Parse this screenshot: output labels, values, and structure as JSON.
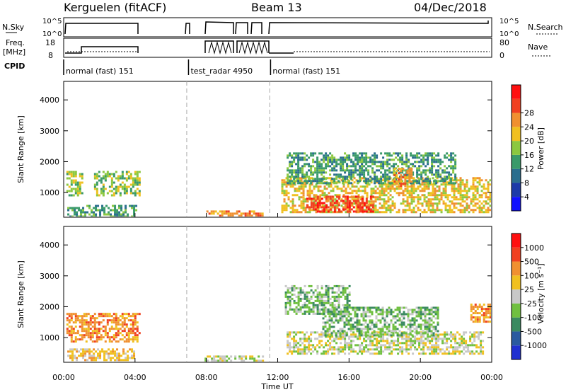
{
  "header": {
    "station": "Kerguelen (fitACF)",
    "beam": "Beam 13",
    "date": "04/Dec/2018"
  },
  "status_panels": {
    "nsky_label": "N.Sky",
    "nsearch_label": "N.Search",
    "freq_label_line1": "Freq.",
    "freq_label_line2": "[MHz]",
    "nave_label": "Nave",
    "cpid_label": "CPID",
    "left_ticks_top": [
      "10^5",
      "10^0"
    ],
    "right_ticks_top": [
      "10^5",
      "10^0"
    ],
    "left_ticks_freq": [
      "18",
      "8"
    ],
    "right_ticks_nave": [
      "80",
      "0"
    ],
    "modes": [
      {
        "label": "normal (fast) 151",
        "start_h": 0.0,
        "end_h": 7.0
      },
      {
        "label": "test_radar 4950",
        "start_h": 7.0,
        "end_h": 11.6
      },
      {
        "label": "normal (fast) 151",
        "start_h": 11.6,
        "end_h": 24.0
      }
    ]
  },
  "chart_data": [
    {
      "type": "heatmap",
      "name": "power",
      "xlabel": "",
      "ylabel": "Slant Range [km]",
      "xlim": [
        0,
        24
      ],
      "ylim": [
        200,
        4600
      ],
      "yticks": [
        1000,
        2000,
        3000,
        4000
      ],
      "colorbar": {
        "label": "Power [dB]",
        "ticks": [
          "4",
          "8",
          "12",
          "16",
          "20",
          "24",
          "28"
        ],
        "colors": [
          "#1010ff",
          "#1c3aa8",
          "#2a6e8e",
          "#3a9a6a",
          "#8cc840",
          "#f0c020",
          "#f09030",
          "#f04020",
          "#ff1010"
        ]
      },
      "regions": [
        {
          "t0": 0.15,
          "t1": 1.0,
          "r0": 900,
          "r1": 1700,
          "level": 4
        },
        {
          "t0": 1.7,
          "t1": 4.2,
          "r0": 900,
          "r1": 1700,
          "level": 4
        },
        {
          "t0": 0.2,
          "t1": 4.1,
          "r0": 250,
          "r1": 600,
          "level": 3
        },
        {
          "t0": 12.2,
          "t1": 23.9,
          "r0": 350,
          "r1": 1500,
          "level": 5
        },
        {
          "t0": 13.6,
          "t1": 17.4,
          "r0": 350,
          "r1": 900,
          "level": 7
        },
        {
          "t0": 12.5,
          "t1": 22.0,
          "r0": 1300,
          "r1": 2300,
          "level": 3
        },
        {
          "t0": 18.5,
          "t1": 19.5,
          "r0": 1200,
          "r1": 1800,
          "level": 6
        },
        {
          "t0": 8.0,
          "t1": 11.2,
          "r0": 250,
          "r1": 420,
          "level": 6
        }
      ]
    },
    {
      "type": "heatmap",
      "name": "velocity",
      "xlabel": "Time UT",
      "ylabel": "Slant Range [km]",
      "xlim": [
        0,
        24
      ],
      "ylim": [
        200,
        4600
      ],
      "yticks": [
        1000,
        2000,
        3000,
        4000
      ],
      "xticks": [
        "00:00",
        "04:00",
        "08:00",
        "12:00",
        "16:00",
        "20:00",
        "00:00"
      ],
      "colorbar": {
        "label": "Velocity [m s⁻¹]",
        "ticks": [
          "1000",
          "500",
          "100",
          "25",
          "-25",
          "-100",
          "-500",
          "-1000"
        ],
        "colors": [
          "#2030d0",
          "#2a5aa0",
          "#3a8a60",
          "#70c040",
          "#c8c8c8",
          "#f0c020",
          "#f09030",
          "#f04020",
          "#ff1010"
        ]
      },
      "regions": [
        {
          "t0": 0.15,
          "t1": 4.2,
          "r0": 900,
          "r1": 1800,
          "level": 6
        },
        {
          "t0": 0.2,
          "t1": 4.0,
          "r0": 250,
          "r1": 650,
          "level": 5
        },
        {
          "t0": 12.5,
          "t1": 23.5,
          "r0": 500,
          "r1": 1200,
          "level": 4
        },
        {
          "t0": 14.5,
          "t1": 21.0,
          "r0": 1100,
          "r1": 2000,
          "level": 3
        },
        {
          "t0": 12.4,
          "t1": 16.0,
          "r0": 1800,
          "r1": 2700,
          "level": 3
        },
        {
          "t0": 22.8,
          "t1": 23.95,
          "r0": 1500,
          "r1": 2100,
          "level": 6
        },
        {
          "t0": 7.9,
          "t1": 11.2,
          "r0": 250,
          "r1": 420,
          "level": 4
        }
      ]
    }
  ],
  "dashed_lines_h": [
    6.9,
    11.55
  ]
}
